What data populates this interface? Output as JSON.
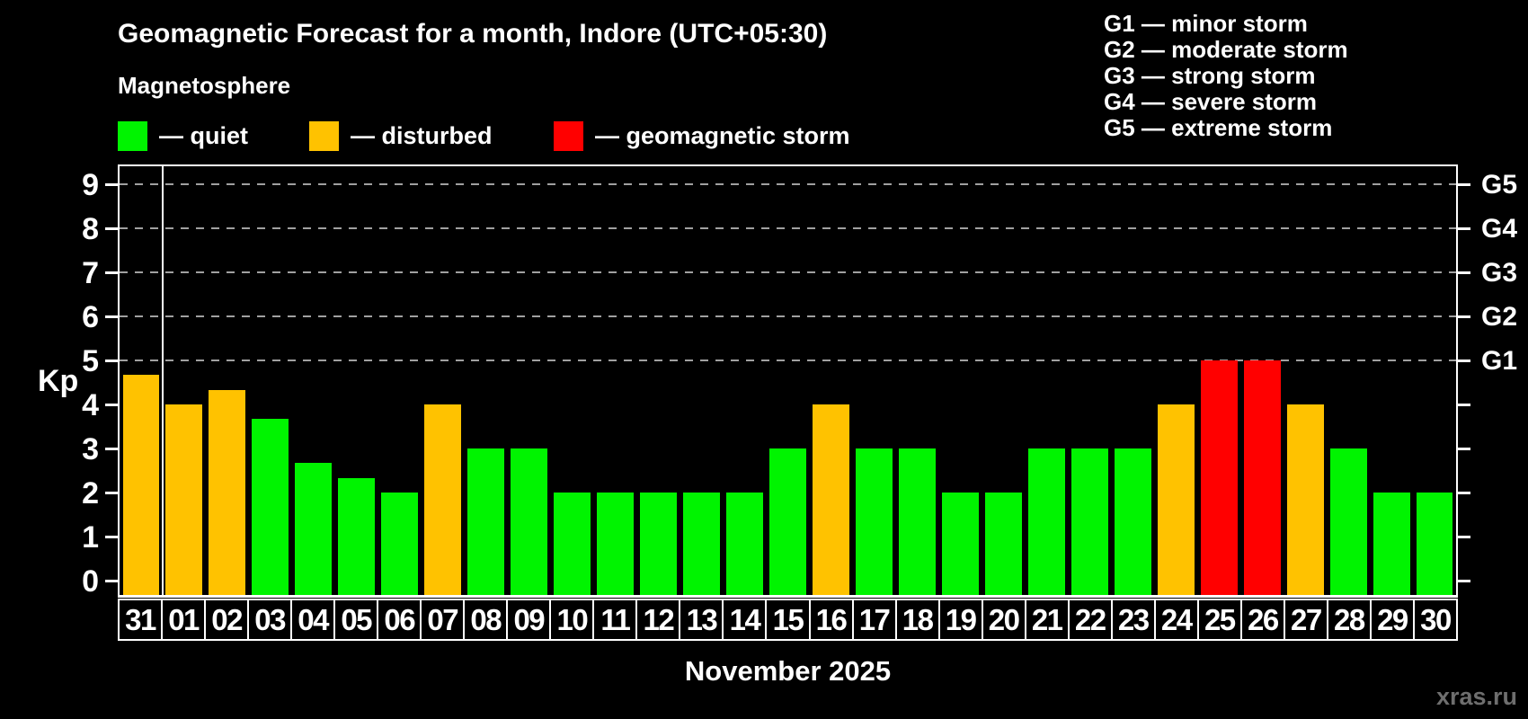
{
  "header": {
    "title": "Geomagnetic Forecast for a month, Indore (UTC+05:30)",
    "subtitle": "Magnetosphere"
  },
  "legend": {
    "items": [
      {
        "key": "quiet",
        "label": "— quiet"
      },
      {
        "key": "disturbed",
        "label": "— disturbed"
      },
      {
        "key": "storm",
        "label": "— geomagnetic storm"
      }
    ]
  },
  "storm_scale_legend": {
    "lines": [
      "G1 — minor storm",
      "G2 — moderate storm",
      "G3 — strong storm",
      "G4 — severe storm",
      "G5 — extreme storm"
    ]
  },
  "colors": {
    "quiet": "#00f400",
    "disturbed": "#ffc200",
    "storm": "#ff0000",
    "grid": "#a0a0a0",
    "axis": "#ffffff"
  },
  "chart_data": {
    "type": "bar",
    "title": "Geomagnetic Forecast for a month, Indore (UTC+05:30)",
    "ylabel": "Kp",
    "xlabel": "November 2025",
    "ylim": [
      0,
      9
    ],
    "yticks": [
      0,
      1,
      2,
      3,
      4,
      5,
      6,
      7,
      8,
      9
    ],
    "gridlines_at": [
      5,
      6,
      7,
      8,
      9
    ],
    "right_axis_labels": [
      {
        "kp": 5,
        "label": "G1"
      },
      {
        "kp": 6,
        "label": "G2"
      },
      {
        "kp": 7,
        "label": "G3"
      },
      {
        "kp": 8,
        "label": "G4"
      },
      {
        "kp": 9,
        "label": "G5"
      }
    ],
    "status_rule": {
      "quiet": "Kp < 4",
      "disturbed": "4 <= Kp < 5",
      "storm": "Kp >= 5"
    },
    "separator_after_index": 0,
    "categories": [
      "31",
      "01",
      "02",
      "03",
      "04",
      "05",
      "06",
      "07",
      "08",
      "09",
      "10",
      "11",
      "12",
      "13",
      "14",
      "15",
      "16",
      "17",
      "18",
      "19",
      "20",
      "21",
      "22",
      "23",
      "24",
      "25",
      "26",
      "27",
      "28",
      "29",
      "30"
    ],
    "series": [
      {
        "name": "Kp forecast",
        "values": [
          4.67,
          4.0,
          4.33,
          3.67,
          2.67,
          2.33,
          2.0,
          4.0,
          3.0,
          3.0,
          2.0,
          2.0,
          2.0,
          2.0,
          2.0,
          3.0,
          4.0,
          3.0,
          3.0,
          2.0,
          2.0,
          3.0,
          3.0,
          3.0,
          4.0,
          5.0,
          5.0,
          4.0,
          3.0,
          2.0,
          2.0
        ]
      }
    ]
  },
  "footer": {
    "xaxis_title": "November 2025",
    "watermark": "xras.ru"
  }
}
